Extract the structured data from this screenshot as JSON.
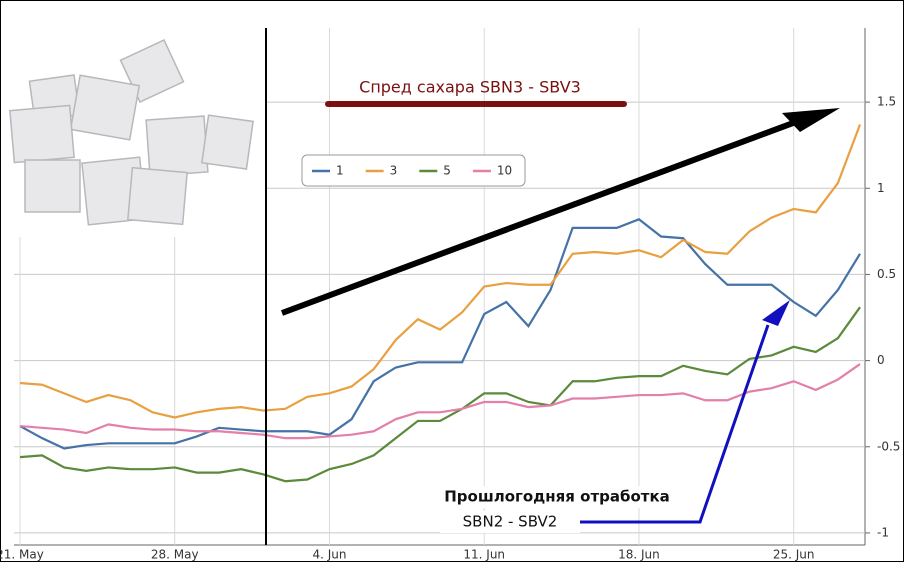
{
  "chart_data": {
    "type": "line",
    "title": "Спред сахара SBN3 - SBV3",
    "annotation": [
      "Прошлогодняя отработка",
      "SBN2 - SBV2"
    ],
    "categories": [
      "21. May",
      null,
      null,
      null,
      null,
      null,
      null,
      "28. May",
      null,
      null,
      null,
      null,
      null,
      null,
      "4. Jun",
      null,
      null,
      null,
      null,
      null,
      null,
      "11. Jun",
      null,
      null,
      null,
      null,
      null,
      null,
      "18. Jun",
      null,
      null,
      null,
      null,
      null,
      null,
      "25. Jun",
      null,
      null,
      null
    ],
    "series": [
      {
        "name": "1",
        "color": "#4572a7",
        "values": [
          -0.38,
          -0.45,
          -0.51,
          -0.49,
          -0.48,
          -0.48,
          -0.48,
          -0.48,
          -0.44,
          -0.39,
          -0.4,
          -0.41,
          -0.41,
          -0.41,
          -0.43,
          -0.34,
          -0.12,
          -0.04,
          -0.01,
          -0.01,
          -0.01,
          0.27,
          0.34,
          0.2,
          0.41,
          0.77,
          0.77,
          0.77,
          0.82,
          0.72,
          0.71,
          0.56,
          0.44,
          0.44,
          0.44,
          0.34,
          0.26,
          0.41,
          0.62
        ]
      },
      {
        "name": "3",
        "color": "#e8a040",
        "values": [
          -0.13,
          -0.14,
          -0.19,
          -0.24,
          -0.2,
          -0.23,
          -0.3,
          -0.33,
          -0.3,
          -0.28,
          -0.27,
          -0.29,
          -0.28,
          -0.21,
          -0.19,
          -0.15,
          -0.05,
          0.12,
          0.24,
          0.18,
          0.28,
          0.43,
          0.45,
          0.44,
          0.44,
          0.62,
          0.63,
          0.62,
          0.64,
          0.6,
          0.7,
          0.63,
          0.62,
          0.75,
          0.83,
          0.88,
          0.86,
          1.03,
          1.37
        ]
      },
      {
        "name": "5",
        "color": "#5a8a3a",
        "values": [
          -0.56,
          -0.55,
          -0.62,
          -0.64,
          -0.62,
          -0.63,
          -0.63,
          -0.62,
          -0.65,
          -0.65,
          -0.63,
          -0.66,
          -0.7,
          -0.69,
          -0.63,
          -0.6,
          -0.55,
          -0.45,
          -0.35,
          -0.35,
          -0.28,
          -0.19,
          -0.19,
          -0.24,
          -0.26,
          -0.12,
          -0.12,
          -0.1,
          -0.09,
          -0.09,
          -0.03,
          -0.06,
          -0.08,
          0.01,
          0.03,
          0.08,
          0.05,
          0.13,
          0.31
        ]
      },
      {
        "name": "10",
        "color": "#e37fa8",
        "values": [
          -0.38,
          -0.39,
          -0.4,
          -0.42,
          -0.37,
          -0.39,
          -0.4,
          -0.4,
          -0.41,
          -0.41,
          -0.42,
          -0.43,
          -0.45,
          -0.45,
          -0.44,
          -0.43,
          -0.41,
          -0.34,
          -0.3,
          -0.3,
          -0.28,
          -0.24,
          -0.24,
          -0.27,
          -0.26,
          -0.22,
          -0.22,
          -0.21,
          -0.2,
          -0.2,
          -0.19,
          -0.23,
          -0.23,
          -0.18,
          -0.16,
          -0.12,
          -0.17,
          -0.11,
          -0.02
        ]
      }
    ],
    "ylim": [
      -1.07,
      1.93
    ],
    "yticks": [
      -1,
      -0.5,
      0,
      0.5,
      1,
      1.5
    ],
    "grid": true
  }
}
